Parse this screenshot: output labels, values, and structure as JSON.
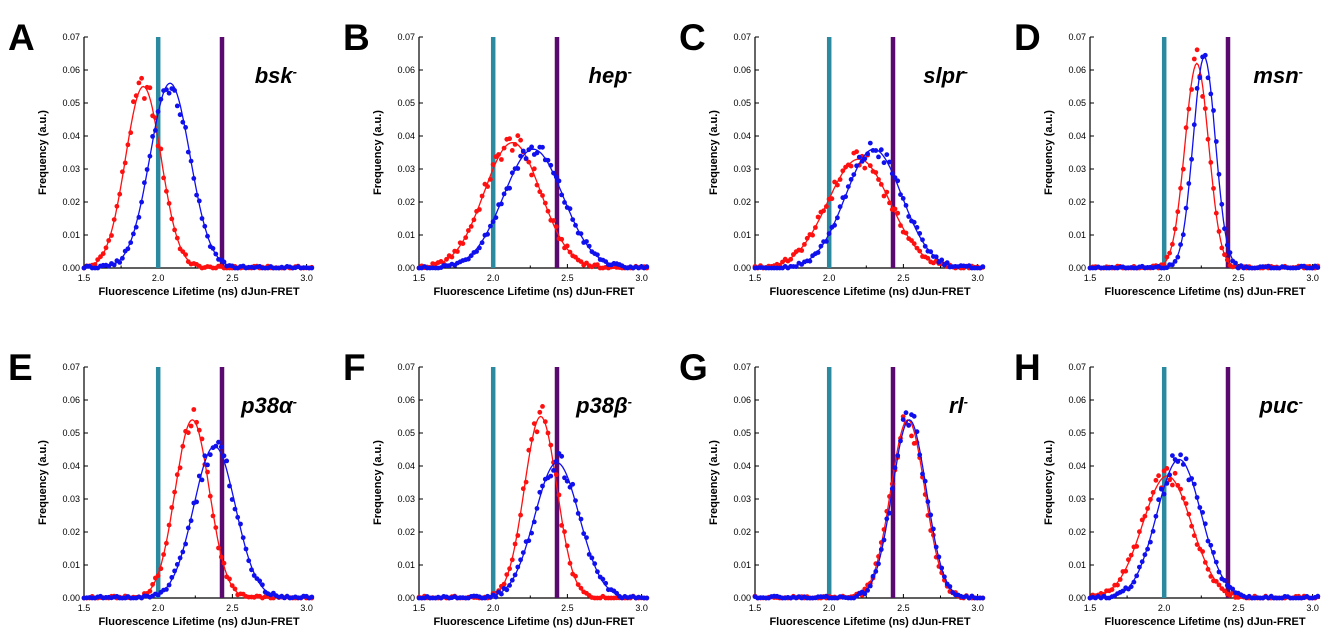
{
  "figure": {
    "colors": {
      "red": "#ff1010",
      "blue": "#1010ee",
      "teal_line": "#2b8aa0",
      "purple_line": "#5a0a6e"
    },
    "reference_lines": {
      "teal": 2.0,
      "purple": 2.43
    }
  },
  "chart_data": [
    {
      "type": "scatter",
      "letter": "A",
      "gene": "bsk",
      "sup": "-",
      "xlabel": "Fluorescence Lifetime (ns) dJun-FRET",
      "ylabel": "Frequency (a.u.)",
      "xlim": [
        1.5,
        3.05
      ],
      "ylim": [
        0,
        0.07
      ],
      "xticks": [
        "1.5",
        "2.0",
        "2.5",
        "3.0"
      ],
      "yticks": [
        "0.00",
        "0.01",
        "0.02",
        "0.03",
        "0.04",
        "0.05",
        "0.06",
        "0.07"
      ],
      "series": [
        {
          "color": "red",
          "fit": {
            "center": 1.9,
            "width": 0.12,
            "amp": 0.055
          }
        },
        {
          "color": "blue",
          "fit": {
            "center": 2.08,
            "width": 0.135,
            "amp": 0.056
          }
        }
      ]
    },
    {
      "type": "scatter",
      "letter": "B",
      "gene": "hep",
      "sup": "-",
      "xlabel": "Fluorescence Lifetime (ns) dJun-FRET",
      "ylabel": "Frequency (a.u.)",
      "xlim": [
        1.5,
        3.05
      ],
      "ylim": [
        0,
        0.07
      ],
      "xticks": [
        "1.5",
        "2.0",
        "2.5",
        "3.0"
      ],
      "yticks": [
        "0.00",
        "0.01",
        "0.02",
        "0.03",
        "0.04",
        "0.05",
        "0.06",
        "0.07"
      ],
      "series": [
        {
          "color": "red",
          "fit": {
            "center": 2.13,
            "width": 0.19,
            "amp": 0.038
          }
        },
        {
          "color": "blue",
          "fit": {
            "center": 2.27,
            "width": 0.2,
            "amp": 0.036
          }
        }
      ]
    },
    {
      "type": "scatter",
      "letter": "C",
      "gene": "slpr",
      "sup": "-",
      "xlabel": "Fluorescence Lifetime (ns) dJun-FRET",
      "ylabel": "Frequency (a.u.)",
      "xlim": [
        1.5,
        3.05
      ],
      "ylim": [
        0,
        0.07
      ],
      "xticks": [
        "1.5",
        "2.0",
        "2.5",
        "3.0"
      ],
      "yticks": [
        "0.00",
        "0.01",
        "0.02",
        "0.03",
        "0.04",
        "0.05",
        "0.06",
        "0.07"
      ],
      "series": [
        {
          "color": "red",
          "fit": {
            "center": 2.2,
            "width": 0.21,
            "amp": 0.033
          }
        },
        {
          "color": "blue",
          "fit": {
            "center": 2.3,
            "width": 0.19,
            "amp": 0.036
          }
        }
      ]
    },
    {
      "type": "scatter",
      "letter": "D",
      "gene": "msn",
      "sup": "-",
      "xlabel": "Fluorescence Lifetime (ns) dJun-FRET",
      "ylabel": "Frequency (a.u.)",
      "xlim": [
        1.5,
        3.05
      ],
      "ylim": [
        0,
        0.07
      ],
      "xticks": [
        "1.5",
        "2.0",
        "2.5",
        "3.0"
      ],
      "yticks": [
        "0.00",
        "0.01",
        "0.02",
        "0.03",
        "0.04",
        "0.05",
        "0.06",
        "0.07"
      ],
      "series": [
        {
          "color": "red",
          "fit": {
            "center": 2.22,
            "width": 0.08,
            "amp": 0.062
          }
        },
        {
          "color": "blue",
          "fit": {
            "center": 2.27,
            "width": 0.075,
            "amp": 0.064
          }
        }
      ]
    },
    {
      "type": "scatter",
      "letter": "E",
      "gene": "p38α",
      "sup": "-",
      "xlabel": "Fluorescence Lifetime (ns) dJun-FRET",
      "ylabel": "Frequency (a.u.)",
      "xlim": [
        1.5,
        3.05
      ],
      "ylim": [
        0,
        0.07
      ],
      "xticks": [
        "1.5",
        "2.0",
        "2.5",
        "3.0"
      ],
      "yticks": [
        "0.00",
        "0.01",
        "0.02",
        "0.03",
        "0.04",
        "0.05",
        "0.06",
        "0.07"
      ],
      "series": [
        {
          "color": "red",
          "fit": {
            "center": 2.23,
            "width": 0.115,
            "amp": 0.054
          }
        },
        {
          "color": "blue",
          "fit": {
            "center": 2.38,
            "width": 0.14,
            "amp": 0.046
          }
        }
      ]
    },
    {
      "type": "scatter",
      "letter": "F",
      "gene": "p38β",
      "sup": "-",
      "xlabel": "Fluorescence Lifetime (ns) dJun-FRET",
      "ylabel": "Frequency (a.u.)",
      "xlim": [
        1.5,
        3.05
      ],
      "ylim": [
        0,
        0.07
      ],
      "xticks": [
        "1.5",
        "2.0",
        "2.5",
        "3.0"
      ],
      "yticks": [
        "0.00",
        "0.01",
        "0.02",
        "0.03",
        "0.04",
        "0.05",
        "0.06",
        "0.07"
      ],
      "series": [
        {
          "color": "red",
          "fit": {
            "center": 2.32,
            "width": 0.11,
            "amp": 0.055
          }
        },
        {
          "color": "blue",
          "fit": {
            "center": 2.43,
            "width": 0.15,
            "amp": 0.041
          }
        }
      ]
    },
    {
      "type": "scatter",
      "letter": "G",
      "gene": "rl",
      "sup": "-",
      "xlabel": "Fluorescence Lifetime (ns) dJun-FRET",
      "ylabel": "Frequency (a.u.)",
      "xlim": [
        1.5,
        3.05
      ],
      "ylim": [
        0,
        0.07
      ],
      "xticks": [
        "1.5",
        "2.0",
        "2.5",
        "3.0"
      ],
      "yticks": [
        "0.00",
        "0.01",
        "0.02",
        "0.03",
        "0.04",
        "0.05",
        "0.06",
        "0.07"
      ],
      "series": [
        {
          "color": "red",
          "fit": {
            "center": 2.53,
            "width": 0.115,
            "amp": 0.054
          }
        },
        {
          "color": "blue",
          "fit": {
            "center": 2.54,
            "width": 0.115,
            "amp": 0.054
          }
        }
      ]
    },
    {
      "type": "scatter",
      "letter": "H",
      "gene": "puc",
      "sup": "-",
      "xlabel": "Fluorescence Lifetime (ns) dJun-FRET",
      "ylabel": "Frequency (a.u.)",
      "xlim": [
        1.5,
        3.05
      ],
      "ylim": [
        0,
        0.07
      ],
      "xticks": [
        "1.5",
        "2.0",
        "2.5",
        "3.0"
      ],
      "yticks": [
        "0.00",
        "0.01",
        "0.02",
        "0.03",
        "0.04",
        "0.05",
        "0.06",
        "0.07"
      ],
      "series": [
        {
          "color": "red",
          "fit": {
            "center": 2.02,
            "width": 0.165,
            "amp": 0.037
          }
        },
        {
          "color": "blue",
          "fit": {
            "center": 2.1,
            "width": 0.15,
            "amp": 0.042
          }
        }
      ]
    }
  ]
}
